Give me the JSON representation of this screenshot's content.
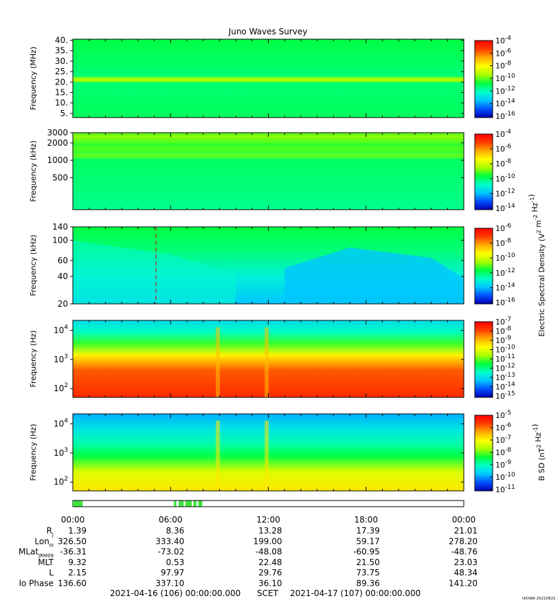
{
  "title": "Juno Waves Survey",
  "colors": {
    "colormap": [
      "#0000b4",
      "#0050ff",
      "#00c8ff",
      "#00ffc8",
      "#00ff3c",
      "#aaff00",
      "#ffff00",
      "#ffaa00",
      "#ff3c00",
      "#ff0000"
    ],
    "burst_bar": "#3fe43f"
  },
  "chart_data": [
    {
      "type": "heatmap",
      "name": "HFR high band",
      "ylabel": "Frequency (MHz)",
      "y_scale": "linear",
      "ylim": [
        3,
        40.5
      ],
      "y_ticks": [
        5,
        10,
        15,
        20,
        25,
        30,
        35,
        40
      ],
      "y_tick_labels": [
        "5.",
        "10.",
        "15.",
        "20.",
        "25.",
        "30.",
        "35.",
        "40."
      ],
      "colorbar": {
        "exponents": [
          -16,
          -14,
          -12,
          -10,
          -8,
          -6,
          -4
        ],
        "tick_labels": [
          "10-16",
          "10-14",
          "10-12",
          "10-10",
          "10-8",
          "10-6",
          "10-4"
        ],
        "label": ""
      }
    },
    {
      "type": "heatmap",
      "name": "HFR low band",
      "ylabel": "Frequency (kHz)",
      "y_scale": "log",
      "ylim": [
        140,
        3000
      ],
      "y_ticks": [
        500,
        1000,
        2000,
        3000
      ],
      "y_tick_labels": [
        "500",
        "1000",
        "2000",
        "3000"
      ],
      "colorbar": {
        "exponents": [
          -14,
          -12,
          -10,
          -8,
          -6,
          -4
        ],
        "tick_labels": [
          "10-14",
          "10-12",
          "10-10",
          "10-8",
          "10-6",
          "10-4"
        ],
        "label": ""
      }
    },
    {
      "type": "heatmap",
      "name": "LFR high",
      "ylabel": "Frequency (kHz)",
      "y_scale": "log",
      "ylim": [
        20,
        140
      ],
      "y_ticks": [
        20,
        40,
        60,
        100,
        140
      ],
      "y_tick_labels": [
        "20",
        "40",
        "60",
        "100",
        "140"
      ],
      "colorbar": {
        "exponents": [
          -16,
          -14,
          -12,
          -10,
          -8,
          -6
        ],
        "tick_labels": [
          "10-16",
          "10-14",
          "10-12",
          "10-10",
          "10-8",
          "10-6"
        ],
        "label": "Electric Spectral Density (V2 m-2 Hz-1)"
      }
    },
    {
      "type": "heatmap",
      "name": "LFR low electric",
      "ylabel": "Frequency (Hz)",
      "y_scale": "log",
      "ylim": [
        50,
        22000
      ],
      "y_ticks": [
        100,
        1000,
        10000
      ],
      "y_tick_labels": [
        "10^2",
        "10^3",
        "10^4"
      ],
      "colorbar": {
        "exponents": [
          -15,
          -14,
          -13,
          -12,
          -11,
          -10,
          -9,
          -8,
          -7
        ],
        "tick_labels": [
          "10-15",
          "10-14",
          "10-13",
          "10-12",
          "10-11",
          "10-10",
          "10-9",
          "10-8",
          "10-7"
        ],
        "label": ""
      }
    },
    {
      "type": "heatmap",
      "name": "Magnetic",
      "ylabel": "Frequency (Hz)",
      "y_scale": "log",
      "ylim": [
        50,
        22000
      ],
      "y_ticks": [
        100,
        1000,
        10000
      ],
      "y_tick_labels": [
        "10^2",
        "10^3",
        "10^4"
      ],
      "colorbar": {
        "exponents": [
          -11,
          -10,
          -9,
          -8,
          -7,
          -6,
          -5
        ],
        "tick_labels": [
          "10-11",
          "10-10",
          "10-9",
          "10-8",
          "10-7",
          "10-6",
          "10-5"
        ],
        "label": "B SD (nT2 Hz-1)"
      }
    }
  ],
  "time_axis": {
    "labels": [
      "00:00",
      "06:00",
      "12:00",
      "18:00",
      "00:00"
    ],
    "hours": [
      0,
      6,
      12,
      18,
      24
    ]
  },
  "burst_intervals_hours": [
    [
      0.0,
      0.6
    ],
    [
      6.2,
      6.35
    ],
    [
      6.5,
      6.8
    ],
    [
      6.9,
      7.3
    ],
    [
      7.4,
      7.6
    ],
    [
      7.7,
      7.95
    ]
  ],
  "ephemeris": {
    "rows": [
      {
        "label": "R",
        "sub": "J",
        "values": [
          "1.39",
          "8.36",
          "13.28",
          "17.39",
          "21.01"
        ]
      },
      {
        "label": "Lon",
        "sub": "III",
        "values": [
          "326.50",
          "333.40",
          "199.00",
          "59.17",
          "278.20"
        ]
      },
      {
        "label": "MLat",
        "sub": "JRM09",
        "values": [
          "-36.31",
          "-73.02",
          "-48.08",
          "-60.95",
          "-48.76"
        ]
      },
      {
        "label": "MLT",
        "sub": "",
        "values": [
          "9.32",
          "0.53",
          "22.48",
          "21.50",
          "23.03"
        ]
      },
      {
        "label": "L",
        "sub": "",
        "values": [
          "2.15",
          "97.97",
          "29.76",
          "73.75",
          "48.34"
        ]
      },
      {
        "label": "Io Phase",
        "sub": "",
        "values": [
          "136.60",
          "337.10",
          "36.10",
          "89.36",
          "141.20"
        ]
      }
    ]
  },
  "footer": {
    "start": "2021-04-16 (106) 00:00:00.000",
    "scet": "SCET",
    "end": "2021-04-17 (107) 00:00:00.000",
    "credit": "UIOWA 20210821"
  }
}
